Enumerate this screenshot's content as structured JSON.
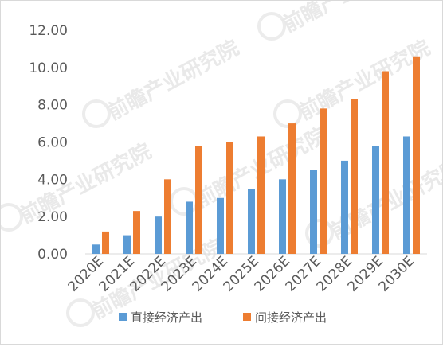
{
  "chart_data": {
    "type": "bar",
    "title": "",
    "xlabel": "",
    "ylabel": "",
    "categories": [
      "2020E",
      "2021E",
      "2022E",
      "2023E",
      "2024E",
      "2025E",
      "2026E",
      "2027E",
      "2028E",
      "2029E",
      "2030E"
    ],
    "series": [
      {
        "name": "直接经济产出",
        "color": "#5b9bd5",
        "values": [
          0.5,
          1.0,
          2.0,
          2.8,
          3.0,
          3.5,
          4.0,
          4.5,
          5.0,
          5.8,
          6.3
        ]
      },
      {
        "name": "间接经济产出",
        "color": "#ed7d31",
        "values": [
          1.2,
          2.3,
          4.0,
          5.8,
          6.0,
          6.3,
          7.0,
          7.8,
          8.3,
          9.8,
          10.6
        ]
      }
    ],
    "ylim": [
      0,
      12
    ],
    "yticks": [
      "0.00",
      "2.00",
      "4.00",
      "6.00",
      "8.00",
      "10.00",
      "12.00"
    ],
    "grid": false,
    "legend": "bottom"
  },
  "watermark": {
    "text": "前瞻产业研究院"
  }
}
